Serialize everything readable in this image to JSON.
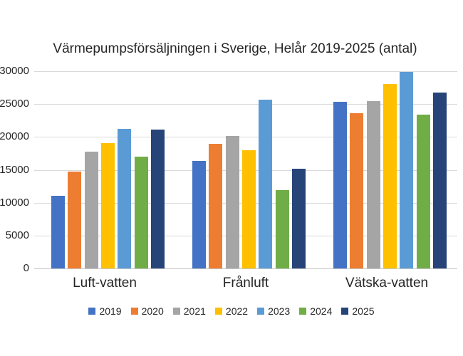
{
  "chart_data": {
    "type": "bar",
    "title": "Värmepumpsförsäljningen i Sverige, Helår 2019-2025 (antal)",
    "categories": [
      "Luft-vatten",
      "Frånluft",
      "Vätska-vatten"
    ],
    "series": [
      {
        "name": "2019",
        "color": "#4472C4",
        "values": [
          11000,
          16300,
          25300
        ]
      },
      {
        "name": "2020",
        "color": "#ED7D31",
        "values": [
          14700,
          18900,
          23600
        ]
      },
      {
        "name": "2021",
        "color": "#A5A5A5",
        "values": [
          17800,
          20100,
          25400
        ]
      },
      {
        "name": "2022",
        "color": "#FFC000",
        "values": [
          19100,
          18000,
          28000
        ]
      },
      {
        "name": "2023",
        "color": "#5B9BD5",
        "values": [
          21200,
          25700,
          29900
        ]
      },
      {
        "name": "2024",
        "color": "#70AD47",
        "values": [
          17000,
          11900,
          23400
        ]
      },
      {
        "name": "2025",
        "color": "#264478",
        "values": [
          21100,
          15200,
          26700
        ]
      }
    ],
    "xlabel": "",
    "ylabel": "",
    "ylim": [
      0,
      30000
    ],
    "yticks": [
      0,
      5000,
      10000,
      15000,
      20000,
      25000,
      30000
    ],
    "grid": "horizontal",
    "legend_position": "bottom",
    "gridline_color": "#D9D9D9",
    "axis_line_color": "#C6C6C6",
    "text_color": "#262626"
  }
}
